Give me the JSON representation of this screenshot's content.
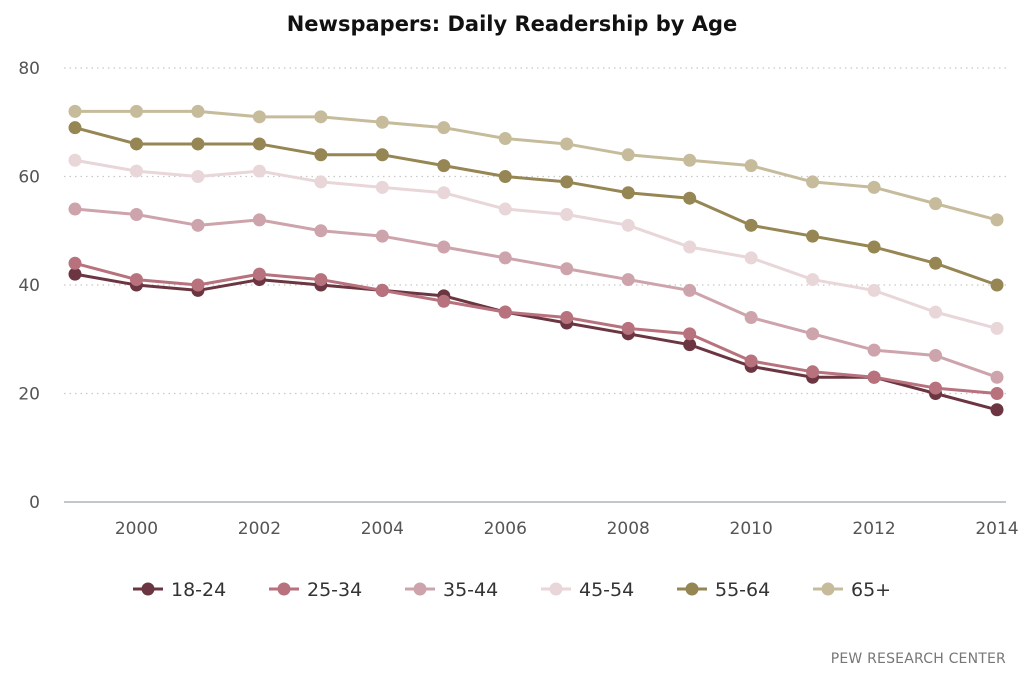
{
  "chart_data": {
    "type": "line",
    "title": "Newspapers: Daily Readership by Age",
    "xlabel": "",
    "ylabel": "",
    "ylim": [
      0,
      80
    ],
    "yticks": [
      0,
      20,
      40,
      60,
      80
    ],
    "xlim": [
      1999,
      2014
    ],
    "xticks": [
      2000,
      2002,
      2004,
      2006,
      2008,
      2010,
      2012,
      2014
    ],
    "grid": "horizontal dotted",
    "legend_position": "bottom",
    "x": [
      1999,
      2000,
      2001,
      2002,
      2003,
      2004,
      2005,
      2006,
      2007,
      2008,
      2009,
      2010,
      2011,
      2012,
      2013,
      2014
    ],
    "series": [
      {
        "name": "18-24",
        "color": "#6b3641",
        "values": [
          42,
          40,
          39,
          41,
          40,
          39,
          38,
          35,
          33,
          31,
          29,
          25,
          23,
          23,
          20,
          17
        ]
      },
      {
        "name": "25-34",
        "color": "#b7727d",
        "values": [
          44,
          41,
          40,
          42,
          41,
          39,
          37,
          35,
          34,
          32,
          31,
          26,
          24,
          23,
          21,
          20
        ]
      },
      {
        "name": "35-44",
        "color": "#cda4ab",
        "values": [
          54,
          53,
          51,
          52,
          50,
          49,
          47,
          45,
          43,
          41,
          39,
          34,
          31,
          28,
          27,
          23
        ]
      },
      {
        "name": "45-54",
        "color": "#e8d6d9",
        "values": [
          63,
          61,
          60,
          61,
          59,
          58,
          57,
          54,
          53,
          51,
          47,
          45,
          41,
          39,
          35,
          32
        ]
      },
      {
        "name": "55-64",
        "color": "#968654",
        "values": [
          69,
          66,
          66,
          66,
          64,
          64,
          62,
          60,
          59,
          57,
          56,
          51,
          49,
          47,
          44,
          40
        ]
      },
      {
        "name": "65+",
        "color": "#c6bc9c",
        "values": [
          72,
          72,
          72,
          71,
          71,
          70,
          69,
          67,
          66,
          64,
          63,
          62,
          59,
          58,
          55,
          52
        ]
      }
    ]
  },
  "source": "PEW RESEARCH CENTER"
}
